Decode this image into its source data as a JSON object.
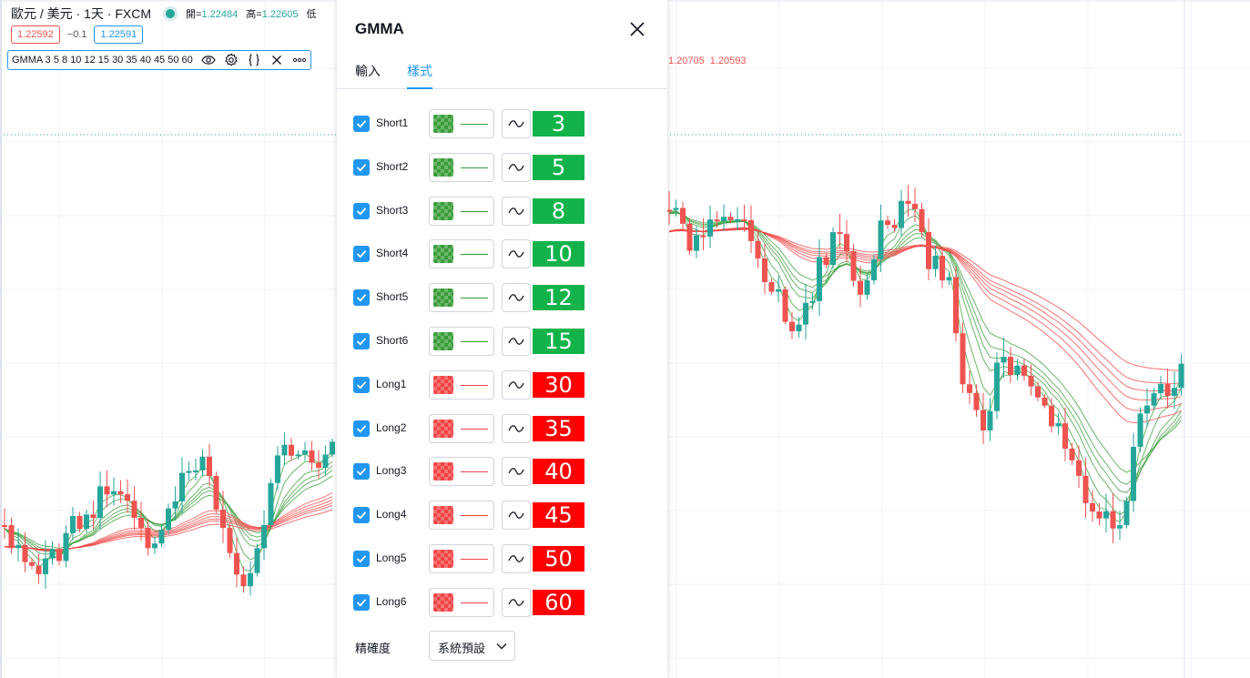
{
  "legend": {
    "symbol_text": "歐元 / 美元 · 1天 · FXCM",
    "ohlc": [
      {
        "label": "開=",
        "value": "1.22484"
      },
      {
        "label": "高=",
        "value": "1.22605"
      },
      {
        "label": "低",
        "value": ""
      }
    ],
    "sell_price": "1.22592",
    "spread": "−0.1",
    "buy_price": "1.22591"
  },
  "indicator": {
    "label": "GMMA 3 5 8 10 12 15 30 35 40 45 50 60",
    "icons": [
      "eye-icon",
      "gear-icon",
      "braces-icon",
      "close-icon",
      "more-icon"
    ],
    "values_shown": [
      "1.20705",
      "1.20593"
    ]
  },
  "dialog": {
    "title": "GMMA",
    "tabs": [
      {
        "label": "輸入",
        "active": false
      },
      {
        "label": "樣式",
        "active": true
      }
    ],
    "plots": [
      {
        "name": "Short1",
        "period": "3",
        "group": "green",
        "checked": true
      },
      {
        "name": "Short2",
        "period": "5",
        "group": "green",
        "checked": true
      },
      {
        "name": "Short3",
        "period": "8",
        "group": "green",
        "checked": true
      },
      {
        "name": "Short4",
        "period": "10",
        "group": "green",
        "checked": true
      },
      {
        "name": "Short5",
        "period": "12",
        "group": "green",
        "checked": true
      },
      {
        "name": "Short6",
        "period": "15",
        "group": "green",
        "checked": true
      },
      {
        "name": "Long1",
        "period": "30",
        "group": "red",
        "checked": true
      },
      {
        "name": "Long2",
        "period": "35",
        "group": "red",
        "checked": true
      },
      {
        "name": "Long3",
        "period": "40",
        "group": "red",
        "checked": true
      },
      {
        "name": "Long4",
        "period": "45",
        "group": "red",
        "checked": true
      },
      {
        "name": "Long5",
        "period": "50",
        "group": "red",
        "checked": true
      },
      {
        "name": "Long6",
        "period": "60",
        "group": "red",
        "checked": true
      }
    ],
    "precision_label": "精確度",
    "precision_value": "系統預設"
  },
  "colors": {
    "short_line": "#3a9d3a",
    "long_line": "#f24444",
    "short_badge": "#12b34a",
    "long_badge": "#fe0000",
    "bull_candle": "#26a69a",
    "bear_candle": "#ef5350",
    "accent": "#2196f3"
  }
}
